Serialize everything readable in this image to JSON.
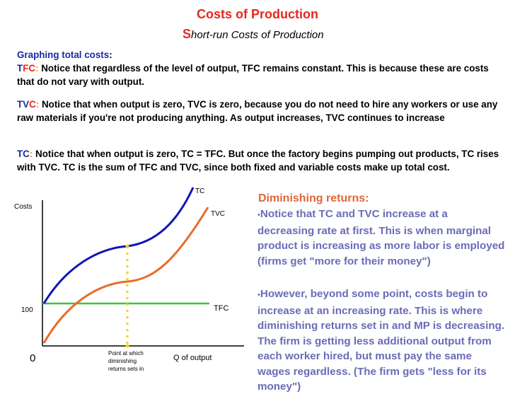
{
  "title": "Costs of Production",
  "subtitle": {
    "initial": "S",
    "rest": "hort-run Costs of Production"
  },
  "p1": {
    "heading": "Graphing total costs",
    "colon": ":",
    "tfc_t": "T",
    "tfc_fc": "FC",
    "tfc_colon": ":",
    "text": " Notice that regardless of the level of output, TFC remains constant. This is because these are costs that do not vary with output."
  },
  "p2": {
    "label_tv": "TV",
    "label_c": "C",
    "colon": ":",
    "text": " Notice that when output is zero, TVC is zero, because you do not need to hire any workers or use any raw materials if you're not producing anything. As output increases, TVC continues to increase"
  },
  "p3": {
    "label": "TC",
    "colon": ":",
    "text": " Notice that when output is zero, TC = TFC. But once the factory begins pumping out products, TC rises with TVC. TC is the sum of TFC and TVC, since both fixed and variable costs make up total cost."
  },
  "chart": {
    "y_axis_label": "Costs",
    "x_axis_label": "Q of output",
    "origin_label": "0",
    "tfc_value_label": "100",
    "tc_label": "TC",
    "tvc_label": "TVC",
    "tfc_label": "TFC",
    "inflection_note": [
      "Point at which",
      "diminishing",
      "returns sets in"
    ],
    "colors": {
      "tc": "#1414b4",
      "tvc": "#ea6a2c",
      "tfc": "#3cc43c",
      "marker": "#f2d21e"
    }
  },
  "diminishing": {
    "title": "Diminishing returns:",
    "bullet": "•",
    "point1": "Notice that TC and TVC increase at a decreasing rate at first. This is when marginal product is increasing as more labor is employed (firms get \"more for their money\")",
    "point2": "However, beyond some point, costs begin to increase at an increasing rate. This is where diminishing returns set in and MP is decreasing. The firm is getting less additional output from each worker hired, but must pay the same wages regardless. (The firm gets \"less for its money\")"
  }
}
